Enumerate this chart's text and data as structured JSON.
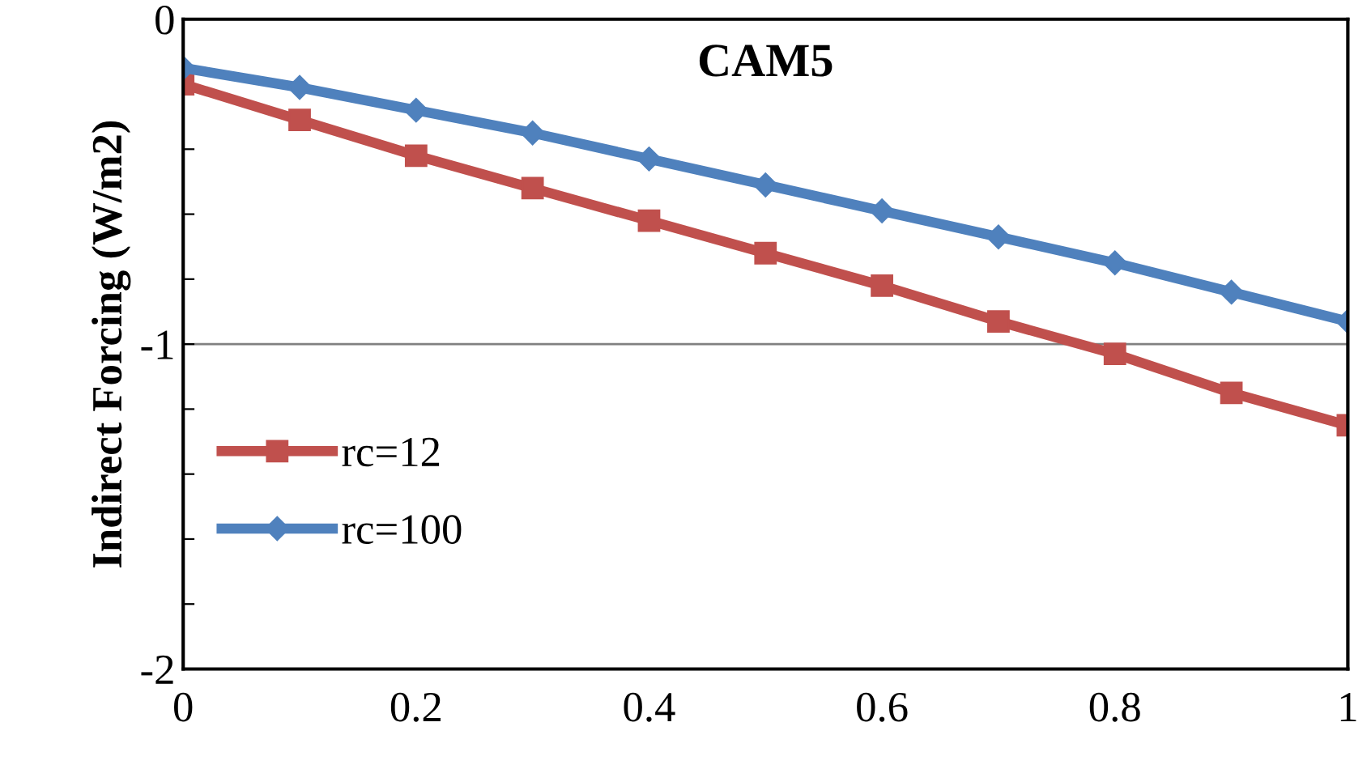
{
  "chart_data": {
    "type": "line",
    "title": "CAM5",
    "ylabel": "Indirect Forcing (W/m2)",
    "x": [
      0,
      0.1,
      0.2,
      0.3,
      0.4,
      0.5,
      0.6,
      0.7,
      0.8,
      0.9,
      1
    ],
    "series": [
      {
        "name": "rc=12",
        "color": "#c0504d",
        "marker": "square",
        "values": [
          -0.2,
          -0.31,
          -0.42,
          -0.52,
          -0.62,
          -0.72,
          -0.82,
          -0.93,
          -1.03,
          -1.15,
          -1.25
        ]
      },
      {
        "name": "rc=100",
        "color": "#4f81bd",
        "marker": "diamond",
        "values": [
          -0.15,
          -0.21,
          -0.28,
          -0.35,
          -0.43,
          -0.51,
          -0.59,
          -0.67,
          -0.75,
          -0.84,
          -0.93
        ]
      }
    ],
    "xlim": [
      0,
      1
    ],
    "xticks": [
      0,
      0.2,
      0.4,
      0.6,
      0.8,
      1
    ],
    "ylim": [
      -2,
      0
    ],
    "yticks": [
      -2,
      {
        "value": -1.8,
        "label": null
      },
      {
        "value": -1.6,
        "label": null
      },
      {
        "value": -1.4,
        "label": null
      },
      {
        "value": -1.2,
        "label": null
      },
      -1,
      {
        "value": -0.8,
        "label": null
      },
      {
        "value": -0.6,
        "label": null
      },
      {
        "value": -0.4,
        "label": null
      },
      {
        "value": -0.2,
        "label": null
      },
      0
    ],
    "ref_lines": [
      {
        "axis": "y",
        "value": -1,
        "color": "#808080"
      }
    ],
    "legend": "bottom left",
    "line_style": "solid"
  }
}
